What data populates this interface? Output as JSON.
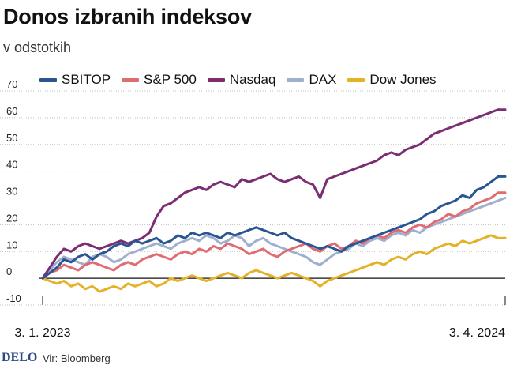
{
  "chart_data": {
    "type": "line",
    "title": "Donos izbranih indeksov",
    "subtitle": "v odstotkih",
    "xlabel": "",
    "ylabel": "",
    "ylim": [
      -10,
      70
    ],
    "yticks": [
      70,
      60,
      50,
      40,
      30,
      20,
      10,
      0,
      -10
    ],
    "x_start_label": "3. 1. 2023",
    "x_end_label": "3. 4. 2024",
    "n_points": 66,
    "series": [
      {
        "name": "SBITOP",
        "color": "#2a5593",
        "values": [
          0,
          2,
          4,
          7,
          6,
          8,
          9,
          7,
          9,
          10,
          12,
          13,
          12,
          14,
          13,
          14,
          15,
          13,
          14,
          16,
          15,
          17,
          16,
          17,
          16,
          15,
          17,
          16,
          17,
          18,
          19,
          18,
          17,
          16,
          17,
          15,
          14,
          13,
          12,
          11,
          12,
          11,
          10,
          12,
          13,
          14,
          15,
          16,
          17,
          18,
          19,
          20,
          21,
          22,
          24,
          25,
          27,
          28,
          29,
          31,
          30,
          33,
          34,
          36,
          38,
          38
        ]
      },
      {
        "name": "S&P 500",
        "color": "#e06b72",
        "values": [
          0,
          2,
          3,
          5,
          4,
          3,
          5,
          6,
          5,
          4,
          3,
          5,
          6,
          5,
          7,
          8,
          9,
          8,
          7,
          9,
          10,
          9,
          11,
          10,
          12,
          11,
          13,
          12,
          11,
          9,
          10,
          11,
          9,
          8,
          10,
          11,
          12,
          13,
          11,
          10,
          12,
          13,
          11,
          12,
          14,
          13,
          15,
          16,
          15,
          17,
          18,
          17,
          19,
          20,
          19,
          21,
          22,
          24,
          23,
          25,
          26,
          28,
          29,
          30,
          32,
          32
        ]
      },
      {
        "name": "Nasdaq",
        "color": "#7b2d74",
        "values": [
          0,
          4,
          8,
          11,
          10,
          12,
          13,
          12,
          11,
          12,
          13,
          14,
          13,
          14,
          15,
          17,
          23,
          27,
          28,
          30,
          32,
          33,
          34,
          33,
          35,
          36,
          35,
          34,
          37,
          36,
          37,
          38,
          39,
          37,
          36,
          37,
          38,
          36,
          35,
          30,
          37,
          38,
          39,
          40,
          41,
          42,
          43,
          44,
          46,
          47,
          46,
          48,
          49,
          50,
          52,
          54,
          55,
          56,
          57,
          58,
          59,
          60,
          61,
          62,
          63,
          63
        ]
      },
      {
        "name": "DAX",
        "color": "#9fb0cf",
        "values": [
          0,
          3,
          6,
          8,
          7,
          6,
          5,
          8,
          9,
          8,
          6,
          7,
          9,
          10,
          11,
          12,
          13,
          12,
          11,
          13,
          14,
          15,
          14,
          16,
          15,
          13,
          14,
          16,
          15,
          12,
          14,
          15,
          13,
          12,
          11,
          10,
          9,
          8,
          6,
          5,
          7,
          9,
          10,
          11,
          13,
          12,
          14,
          15,
          14,
          16,
          17,
          16,
          18,
          17,
          19,
          20,
          21,
          22,
          23,
          24,
          25,
          26,
          27,
          28,
          29,
          30
        ]
      },
      {
        "name": "Dow Jones",
        "color": "#e4b129",
        "values": [
          0,
          -1,
          -2,
          -1,
          -3,
          -2,
          -4,
          -3,
          -5,
          -4,
          -3,
          -4,
          -2,
          -3,
          -2,
          -1,
          -3,
          -2,
          0,
          -1,
          0,
          1,
          0,
          -1,
          0,
          1,
          2,
          1,
          0,
          2,
          3,
          2,
          1,
          0,
          1,
          2,
          1,
          0,
          -1,
          -3,
          -1,
          0,
          1,
          2,
          3,
          4,
          5,
          6,
          5,
          7,
          8,
          7,
          9,
          10,
          9,
          11,
          12,
          13,
          12,
          14,
          13,
          14,
          15,
          16,
          15,
          15
        ]
      }
    ],
    "footer_brand": "DELO",
    "footer_source": "Vir: Bloomberg"
  }
}
